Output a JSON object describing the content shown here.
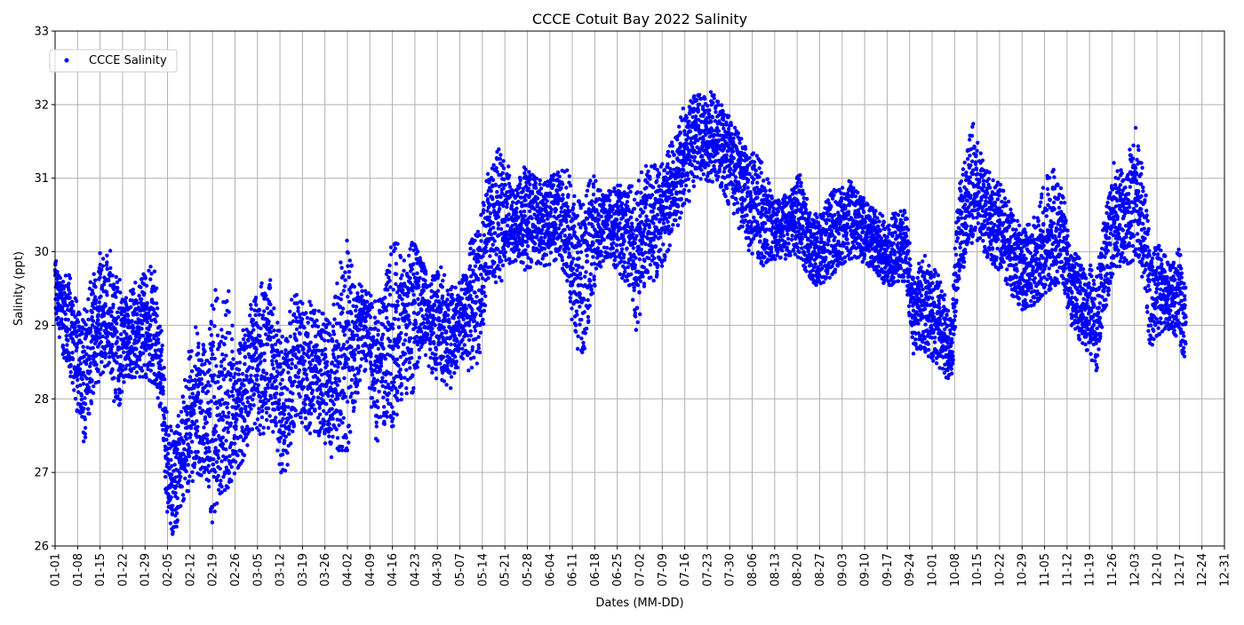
{
  "chart_data": {
    "type": "scatter",
    "title": "CCCE Cotuit Bay 2022 Salinity",
    "xlabel": "Dates (MM-DD)",
    "ylabel": "Salinity (ppt)",
    "ylim": [
      26,
      33
    ],
    "xlim": [
      "2022-01-01",
      "2022-12-31"
    ],
    "grid": true,
    "legend_position": "upper-left",
    "yticks": [
      26,
      27,
      28,
      29,
      30,
      31,
      32,
      33
    ],
    "xticks": [
      "01-01",
      "01-08",
      "01-15",
      "01-22",
      "01-29",
      "02-05",
      "02-12",
      "02-19",
      "02-26",
      "03-05",
      "03-12",
      "03-19",
      "03-26",
      "04-02",
      "04-09",
      "04-16",
      "04-23",
      "04-30",
      "05-07",
      "05-14",
      "05-21",
      "05-28",
      "06-04",
      "06-11",
      "06-18",
      "06-25",
      "07-02",
      "07-09",
      "07-16",
      "07-23",
      "07-30",
      "08-06",
      "08-13",
      "08-20",
      "08-27",
      "09-03",
      "09-10",
      "09-17",
      "09-24",
      "10-01",
      "10-08",
      "10-15",
      "10-22",
      "10-29",
      "11-05",
      "11-12",
      "11-19",
      "11-26",
      "12-03",
      "12-10",
      "12-17",
      "12-24",
      "12-31"
    ],
    "series": [
      {
        "name": "CCCE Salinity",
        "color": "#0000ff",
        "marker": "circle",
        "points": [
          {
            "x": "01-01",
            "low": 29.2,
            "mid": 29.6,
            "high": 30.0
          },
          {
            "x": "01-03",
            "low": 28.6,
            "mid": 29.1,
            "high": 29.6
          },
          {
            "x": "01-05",
            "low": 28.5,
            "mid": 29.0,
            "high": 29.8
          },
          {
            "x": "01-08",
            "low": 27.8,
            "mid": 28.4,
            "high": 29.3
          },
          {
            "x": "01-10",
            "low": 27.4,
            "mid": 28.3,
            "high": 29.4
          },
          {
            "x": "01-13",
            "low": 28.0,
            "mid": 28.8,
            "high": 29.8
          },
          {
            "x": "01-15",
            "low": 28.3,
            "mid": 29.0,
            "high": 30.0
          },
          {
            "x": "01-18",
            "low": 28.5,
            "mid": 29.1,
            "high": 30.1
          },
          {
            "x": "01-20",
            "low": 27.7,
            "mid": 28.5,
            "high": 29.8
          },
          {
            "x": "01-23",
            "low": 28.2,
            "mid": 28.8,
            "high": 29.4
          },
          {
            "x": "01-26",
            "low": 28.3,
            "mid": 28.9,
            "high": 29.6
          },
          {
            "x": "01-29",
            "low": 28.3,
            "mid": 28.9,
            "high": 29.8
          },
          {
            "x": "02-01",
            "low": 28.2,
            "mid": 28.8,
            "high": 29.8
          },
          {
            "x": "02-03",
            "low": 27.8,
            "mid": 28.4,
            "high": 29.0
          },
          {
            "x": "02-05",
            "low": 26.3,
            "mid": 27.0,
            "high": 27.8
          },
          {
            "x": "02-07",
            "low": 26.1,
            "mid": 26.9,
            "high": 27.7
          },
          {
            "x": "02-09",
            "low": 26.5,
            "mid": 27.1,
            "high": 27.8
          },
          {
            "x": "02-12",
            "low": 26.8,
            "mid": 27.6,
            "high": 28.8
          },
          {
            "x": "02-14",
            "low": 27.0,
            "mid": 27.8,
            "high": 29.0
          },
          {
            "x": "02-17",
            "low": 26.9,
            "mid": 27.7,
            "high": 28.9
          },
          {
            "x": "02-19",
            "low": 26.3,
            "mid": 27.6,
            "high": 29.7
          },
          {
            "x": "02-21",
            "low": 26.7,
            "mid": 27.6,
            "high": 29.3
          },
          {
            "x": "02-24",
            "low": 26.8,
            "mid": 27.9,
            "high": 29.6
          },
          {
            "x": "02-26",
            "low": 27.0,
            "mid": 27.7,
            "high": 28.7
          },
          {
            "x": "03-01",
            "low": 27.2,
            "mid": 28.0,
            "high": 29.1
          },
          {
            "x": "03-03",
            "low": 27.6,
            "mid": 28.3,
            "high": 29.3
          },
          {
            "x": "03-06",
            "low": 27.5,
            "mid": 28.5,
            "high": 29.6
          },
          {
            "x": "03-09",
            "low": 27.6,
            "mid": 28.6,
            "high": 29.7
          },
          {
            "x": "03-12",
            "low": 27.0,
            "mid": 27.8,
            "high": 28.9
          },
          {
            "x": "03-14",
            "low": 27.0,
            "mid": 27.9,
            "high": 29.1
          },
          {
            "x": "03-17",
            "low": 27.8,
            "mid": 28.6,
            "high": 29.6
          },
          {
            "x": "03-20",
            "low": 27.6,
            "mid": 28.3,
            "high": 29.2
          },
          {
            "x": "03-22",
            "low": 27.5,
            "mid": 28.3,
            "high": 29.4
          },
          {
            "x": "03-25",
            "low": 27.5,
            "mid": 28.4,
            "high": 29.2
          },
          {
            "x": "03-28",
            "low": 27.2,
            "mid": 28.0,
            "high": 29.0
          },
          {
            "x": "03-30",
            "low": 27.3,
            "mid": 28.4,
            "high": 29.8
          },
          {
            "x": "04-02",
            "low": 27.3,
            "mid": 28.5,
            "high": 30.2
          },
          {
            "x": "04-05",
            "low": 28.0,
            "mid": 28.9,
            "high": 29.6
          },
          {
            "x": "04-08",
            "low": 28.4,
            "mid": 29.0,
            "high": 29.5
          },
          {
            "x": "04-11",
            "low": 27.3,
            "mid": 28.4,
            "high": 29.3
          },
          {
            "x": "04-13",
            "low": 27.6,
            "mid": 28.6,
            "high": 29.4
          },
          {
            "x": "04-16",
            "low": 27.6,
            "mid": 28.8,
            "high": 30.4
          },
          {
            "x": "04-19",
            "low": 28.0,
            "mid": 29.0,
            "high": 29.9
          },
          {
            "x": "04-22",
            "low": 28.0,
            "mid": 29.2,
            "high": 30.2
          },
          {
            "x": "04-25",
            "low": 28.6,
            "mid": 29.3,
            "high": 29.9
          },
          {
            "x": "04-28",
            "low": 28.3,
            "mid": 29.0,
            "high": 29.7
          },
          {
            "x": "05-01",
            "low": 28.2,
            "mid": 29.1,
            "high": 29.8
          },
          {
            "x": "05-04",
            "low": 28.1,
            "mid": 28.9,
            "high": 29.5
          },
          {
            "x": "05-07",
            "low": 28.4,
            "mid": 29.0,
            "high": 29.6
          },
          {
            "x": "05-10",
            "low": 28.3,
            "mid": 29.3,
            "high": 30.1
          },
          {
            "x": "05-13",
            "low": 28.5,
            "mid": 29.5,
            "high": 30.4
          },
          {
            "x": "05-16",
            "low": 29.6,
            "mid": 30.3,
            "high": 31.2
          },
          {
            "x": "05-19",
            "low": 29.4,
            "mid": 30.5,
            "high": 31.4
          },
          {
            "x": "05-22",
            "low": 29.8,
            "mid": 30.5,
            "high": 31.2
          },
          {
            "x": "05-25",
            "low": 29.9,
            "mid": 30.4,
            "high": 31.0
          },
          {
            "x": "05-28",
            "low": 29.7,
            "mid": 30.5,
            "high": 31.3
          },
          {
            "x": "05-31",
            "low": 29.8,
            "mid": 30.4,
            "high": 31.0
          },
          {
            "x": "06-03",
            "low": 29.8,
            "mid": 30.4,
            "high": 31.0
          },
          {
            "x": "06-06",
            "low": 29.9,
            "mid": 30.4,
            "high": 31.1
          },
          {
            "x": "06-09",
            "low": 29.7,
            "mid": 30.3,
            "high": 31.3
          },
          {
            "x": "06-12",
            "low": 28.7,
            "mid": 29.8,
            "high": 30.8
          },
          {
            "x": "06-14",
            "low": 28.3,
            "mid": 29.6,
            "high": 30.6
          },
          {
            "x": "06-17",
            "low": 29.3,
            "mid": 30.1,
            "high": 31.1
          },
          {
            "x": "06-20",
            "low": 29.8,
            "mid": 30.3,
            "high": 30.8
          },
          {
            "x": "06-23",
            "low": 29.9,
            "mid": 30.4,
            "high": 30.9
          },
          {
            "x": "06-26",
            "low": 29.6,
            "mid": 30.3,
            "high": 30.9
          },
          {
            "x": "06-29",
            "low": 29.5,
            "mid": 30.2,
            "high": 30.9
          },
          {
            "x": "07-01",
            "low": 28.9,
            "mid": 29.8,
            "high": 30.9
          },
          {
            "x": "07-04",
            "low": 29.6,
            "mid": 30.3,
            "high": 31.3
          },
          {
            "x": "07-07",
            "low": 29.6,
            "mid": 30.4,
            "high": 31.2
          },
          {
            "x": "07-10",
            "low": 29.9,
            "mid": 30.6,
            "high": 31.3
          },
          {
            "x": "07-13",
            "low": 30.3,
            "mid": 30.9,
            "high": 31.7
          },
          {
            "x": "07-16",
            "low": 30.5,
            "mid": 31.3,
            "high": 32.0
          },
          {
            "x": "07-19",
            "low": 30.8,
            "mid": 31.5,
            "high": 32.2
          },
          {
            "x": "07-22",
            "low": 31.0,
            "mid": 31.6,
            "high": 32.1
          },
          {
            "x": "07-25",
            "low": 30.9,
            "mid": 31.6,
            "high": 32.2
          },
          {
            "x": "07-28",
            "low": 30.8,
            "mid": 31.4,
            "high": 32.0
          },
          {
            "x": "07-31",
            "low": 30.5,
            "mid": 31.2,
            "high": 31.8
          },
          {
            "x": "08-03",
            "low": 30.2,
            "mid": 30.9,
            "high": 31.5
          },
          {
            "x": "08-06",
            "low": 29.9,
            "mid": 30.6,
            "high": 31.4
          },
          {
            "x": "08-09",
            "low": 29.8,
            "mid": 30.4,
            "high": 31.3
          },
          {
            "x": "08-12",
            "low": 29.9,
            "mid": 30.3,
            "high": 30.8
          },
          {
            "x": "08-15",
            "low": 29.9,
            "mid": 30.3,
            "high": 30.7
          },
          {
            "x": "08-18",
            "low": 29.9,
            "mid": 30.4,
            "high": 30.9
          },
          {
            "x": "08-21",
            "low": 29.9,
            "mid": 30.5,
            "high": 31.1
          },
          {
            "x": "08-24",
            "low": 29.6,
            "mid": 30.1,
            "high": 30.6
          },
          {
            "x": "08-27",
            "low": 29.5,
            "mid": 30.0,
            "high": 30.5
          },
          {
            "x": "08-30",
            "low": 29.6,
            "mid": 30.2,
            "high": 30.8
          },
          {
            "x": "09-02",
            "low": 29.7,
            "mid": 30.3,
            "high": 30.9
          },
          {
            "x": "09-05",
            "low": 29.9,
            "mid": 30.5,
            "high": 31.0
          },
          {
            "x": "09-08",
            "low": 29.9,
            "mid": 30.4,
            "high": 30.8
          },
          {
            "x": "09-11",
            "low": 29.8,
            "mid": 30.2,
            "high": 30.7
          },
          {
            "x": "09-14",
            "low": 29.7,
            "mid": 30.1,
            "high": 30.6
          },
          {
            "x": "09-17",
            "low": 29.5,
            "mid": 29.9,
            "high": 30.4
          },
          {
            "x": "09-20",
            "low": 29.6,
            "mid": 30.0,
            "high": 30.6
          },
          {
            "x": "09-23",
            "low": 29.6,
            "mid": 30.0,
            "high": 30.6
          },
          {
            "x": "09-25",
            "low": 28.6,
            "mid": 29.1,
            "high": 29.7
          },
          {
            "x": "09-28",
            "low": 28.7,
            "mid": 29.2,
            "high": 30.0
          },
          {
            "x": "10-01",
            "low": 28.5,
            "mid": 29.1,
            "high": 29.8
          },
          {
            "x": "10-04",
            "low": 28.4,
            "mid": 29.0,
            "high": 29.7
          },
          {
            "x": "10-07",
            "low": 28.1,
            "mid": 28.6,
            "high": 29.1
          },
          {
            "x": "10-09",
            "low": 29.5,
            "mid": 30.2,
            "high": 30.8
          },
          {
            "x": "10-11",
            "low": 29.8,
            "mid": 30.5,
            "high": 31.3
          },
          {
            "x": "10-14",
            "low": 30.2,
            "mid": 30.9,
            "high": 31.8
          },
          {
            "x": "10-17",
            "low": 29.9,
            "mid": 30.6,
            "high": 31.2
          },
          {
            "x": "10-20",
            "low": 29.8,
            "mid": 30.4,
            "high": 31.0
          },
          {
            "x": "10-23",
            "low": 29.7,
            "mid": 30.3,
            "high": 31.0
          },
          {
            "x": "10-26",
            "low": 29.4,
            "mid": 29.9,
            "high": 30.5
          },
          {
            "x": "10-29",
            "low": 29.2,
            "mid": 29.8,
            "high": 30.4
          },
          {
            "x": "11-01",
            "low": 29.2,
            "mid": 29.7,
            "high": 30.4
          },
          {
            "x": "11-04",
            "low": 29.4,
            "mid": 30.0,
            "high": 30.8
          },
          {
            "x": "11-07",
            "low": 29.5,
            "mid": 30.1,
            "high": 31.2
          },
          {
            "x": "11-10",
            "low": 29.6,
            "mid": 30.3,
            "high": 31.1
          },
          {
            "x": "11-13",
            "low": 29.0,
            "mid": 29.5,
            "high": 30.1
          },
          {
            "x": "11-16",
            "low": 28.8,
            "mid": 29.3,
            "high": 29.9
          },
          {
            "x": "11-19",
            "low": 28.6,
            "mid": 29.2,
            "high": 29.9
          },
          {
            "x": "11-21",
            "low": 28.3,
            "mid": 28.9,
            "high": 29.6
          },
          {
            "x": "11-24",
            "low": 29.2,
            "mid": 29.9,
            "high": 30.6
          },
          {
            "x": "11-27",
            "low": 29.8,
            "mid": 30.4,
            "high": 31.3
          },
          {
            "x": "11-30",
            "low": 29.8,
            "mid": 30.4,
            "high": 31.1
          },
          {
            "x": "12-03",
            "low": 29.9,
            "mid": 30.5,
            "high": 31.8
          },
          {
            "x": "12-06",
            "low": 29.6,
            "mid": 30.3,
            "high": 31.1
          },
          {
            "x": "12-08",
            "low": 28.5,
            "mid": 29.3,
            "high": 30.1
          },
          {
            "x": "12-11",
            "low": 28.9,
            "mid": 29.5,
            "high": 30.1
          },
          {
            "x": "12-14",
            "low": 28.9,
            "mid": 29.4,
            "high": 29.8
          },
          {
            "x": "12-17",
            "low": 28.8,
            "mid": 29.4,
            "high": 30.1
          },
          {
            "x": "12-19",
            "low": 28.4,
            "mid": 29.0,
            "high": 29.6
          }
        ]
      }
    ]
  }
}
